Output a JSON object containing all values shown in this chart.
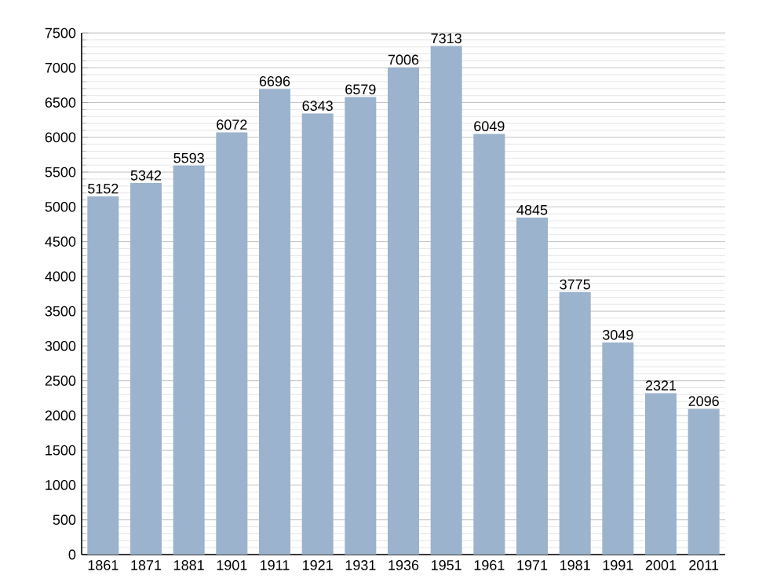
{
  "chart_data": {
    "type": "bar",
    "categories": [
      "1861",
      "1871",
      "1881",
      "1901",
      "1911",
      "1921",
      "1931",
      "1936",
      "1951",
      "1961",
      "1971",
      "1981",
      "1991",
      "2001",
      "2011"
    ],
    "values": [
      5152,
      5342,
      5593,
      6072,
      6696,
      6343,
      6579,
      7006,
      7313,
      6049,
      4845,
      3775,
      3049,
      2321,
      2096
    ],
    "color": "#9bb3cc",
    "ylim": [
      0,
      7500
    ],
    "yticks": [
      0,
      500,
      1000,
      1500,
      2000,
      2500,
      3000,
      3500,
      4000,
      4500,
      5000,
      5500,
      6000,
      6500,
      7000,
      7500
    ],
    "grid": "y",
    "data_labels": true
  }
}
